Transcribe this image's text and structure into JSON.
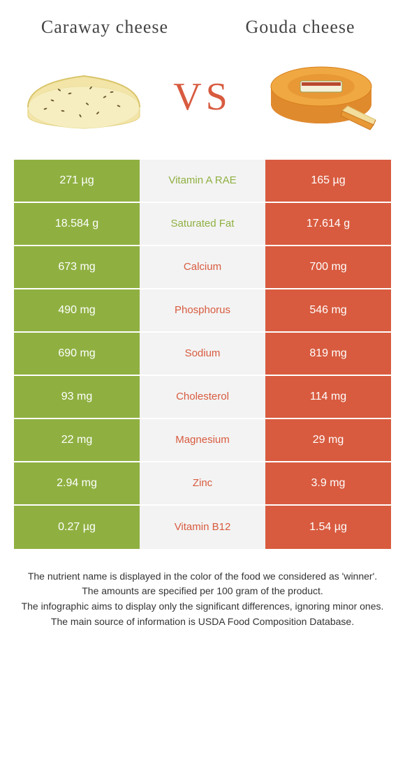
{
  "header": {
    "left_title": "Caraway cheese",
    "right_title": "Gouda cheese"
  },
  "hero": {
    "vs_text": "VS"
  },
  "colors": {
    "left": "#8fb041",
    "right": "#d85b3f",
    "mid_bg": "#f3f3f3",
    "page_bg": "#ffffff"
  },
  "table": {
    "rows": [
      {
        "left": "271 µg",
        "label": "Vitamin A RAE",
        "right": "165 µg",
        "winner": "left"
      },
      {
        "left": "18.584 g",
        "label": "Saturated Fat",
        "right": "17.614 g",
        "winner": "left"
      },
      {
        "left": "673 mg",
        "label": "Calcium",
        "right": "700 mg",
        "winner": "right"
      },
      {
        "left": "490 mg",
        "label": "Phosphorus",
        "right": "546 mg",
        "winner": "right"
      },
      {
        "left": "690 mg",
        "label": "Sodium",
        "right": "819 mg",
        "winner": "right"
      },
      {
        "left": "93 mg",
        "label": "Cholesterol",
        "right": "114 mg",
        "winner": "right"
      },
      {
        "left": "22 mg",
        "label": "Magnesium",
        "right": "29 mg",
        "winner": "right"
      },
      {
        "left": "2.94 mg",
        "label": "Zinc",
        "right": "3.9 mg",
        "winner": "right"
      },
      {
        "left": "0.27 µg",
        "label": "Vitamin B12",
        "right": "1.54 µg",
        "winner": "right"
      }
    ]
  },
  "footer": {
    "line1": "The nutrient name is displayed in the color of the food we considered as 'winner'.",
    "line2": "The amounts are specified per 100 gram of the product.",
    "line3": "The infographic aims to display only the significant differences, ignoring minor ones.",
    "line4": "The main source of information is USDA Food Composition Database."
  }
}
